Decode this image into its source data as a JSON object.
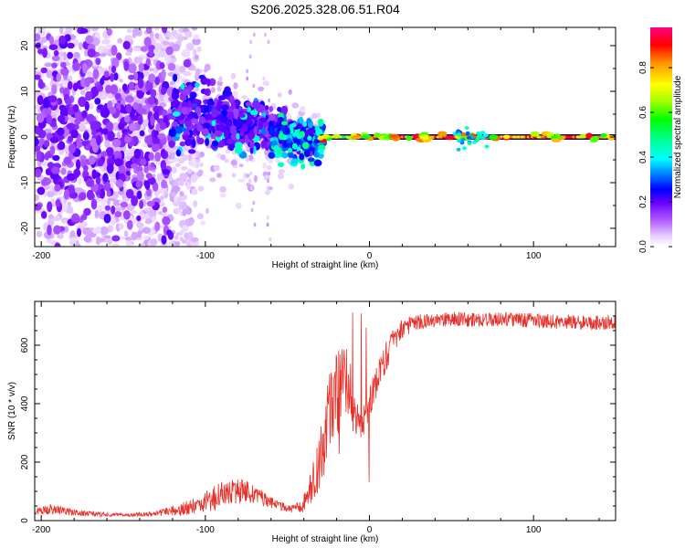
{
  "title": "S206.2025.328.06.51.R04",
  "chart_data": [
    {
      "type": "heatmap",
      "xlabel": "Height of straight line (km)",
      "ylabel": "Frequency (Hz)",
      "xlim": [
        -204,
        150
      ],
      "ylim": [
        -24,
        24
      ],
      "xticks": [
        -200,
        -100,
        0,
        100
      ],
      "yticks": [
        -20,
        -10,
        0,
        10,
        20
      ],
      "colorbar": {
        "label": "Normalized spectral amplitude",
        "range": [
          0,
          0.98
        ],
        "ticks": [
          "0.0",
          "0.2",
          "0.4",
          "0.6",
          "0.8"
        ],
        "tick_values": [
          0,
          0.2,
          0.4,
          0.6,
          0.8
        ]
      },
      "structure": {
        "carrier_band_hz": [
          -0.6,
          0.6
        ],
        "scattered_region_km": [
          -204,
          -120
        ],
        "diffuse_region_km": [
          -120,
          -30
        ],
        "clean_line_region_km": [
          -30,
          150
        ],
        "peak_amplitude": 0.98
      }
    },
    {
      "type": "line",
      "xlabel": "Height of straight line (km)",
      "ylabel": "SNR (10 * v/v)",
      "xlim": [
        -204,
        150
      ],
      "ylim": [
        0,
        750
      ],
      "xticks": [
        -200,
        -100,
        0,
        100
      ],
      "yticks": [
        0,
        200,
        400,
        600
      ],
      "series": [
        {
          "name": "SNR",
          "color": "#e8302a",
          "x": [
            -204,
            -195,
            -185,
            -175,
            -165,
            -155,
            -145,
            -135,
            -125,
            -115,
            -105,
            -95,
            -85,
            -75,
            -65,
            -55,
            -45,
            -40,
            -35,
            -30,
            -25,
            -20,
            -15,
            -12,
            -10,
            -5,
            0,
            5,
            10,
            15,
            20,
            25,
            30,
            40,
            50,
            60,
            70,
            80,
            90,
            100,
            110,
            120,
            130,
            140,
            150
          ],
          "y": [
            30,
            40,
            32,
            25,
            22,
            20,
            20,
            22,
            28,
            38,
            55,
            75,
            95,
            100,
            75,
            50,
            40,
            60,
            120,
            220,
            350,
            430,
            470,
            480,
            360,
            330,
            400,
            480,
            560,
            620,
            655,
            670,
            680,
            685,
            690,
            688,
            685,
            690,
            688,
            685,
            682,
            680,
            678,
            678,
            680
          ],
          "noise": [
            12,
            18,
            12,
            10,
            8,
            6,
            6,
            8,
            14,
            22,
            30,
            45,
            50,
            40,
            25,
            15,
            15,
            30,
            60,
            110,
            140,
            150,
            140,
            130,
            80,
            60,
            60,
            60,
            50,
            40,
            35,
            30,
            25,
            25,
            25,
            25,
            25,
            25,
            25,
            25,
            25,
            25,
            25,
            25,
            25
          ]
        }
      ]
    }
  ]
}
